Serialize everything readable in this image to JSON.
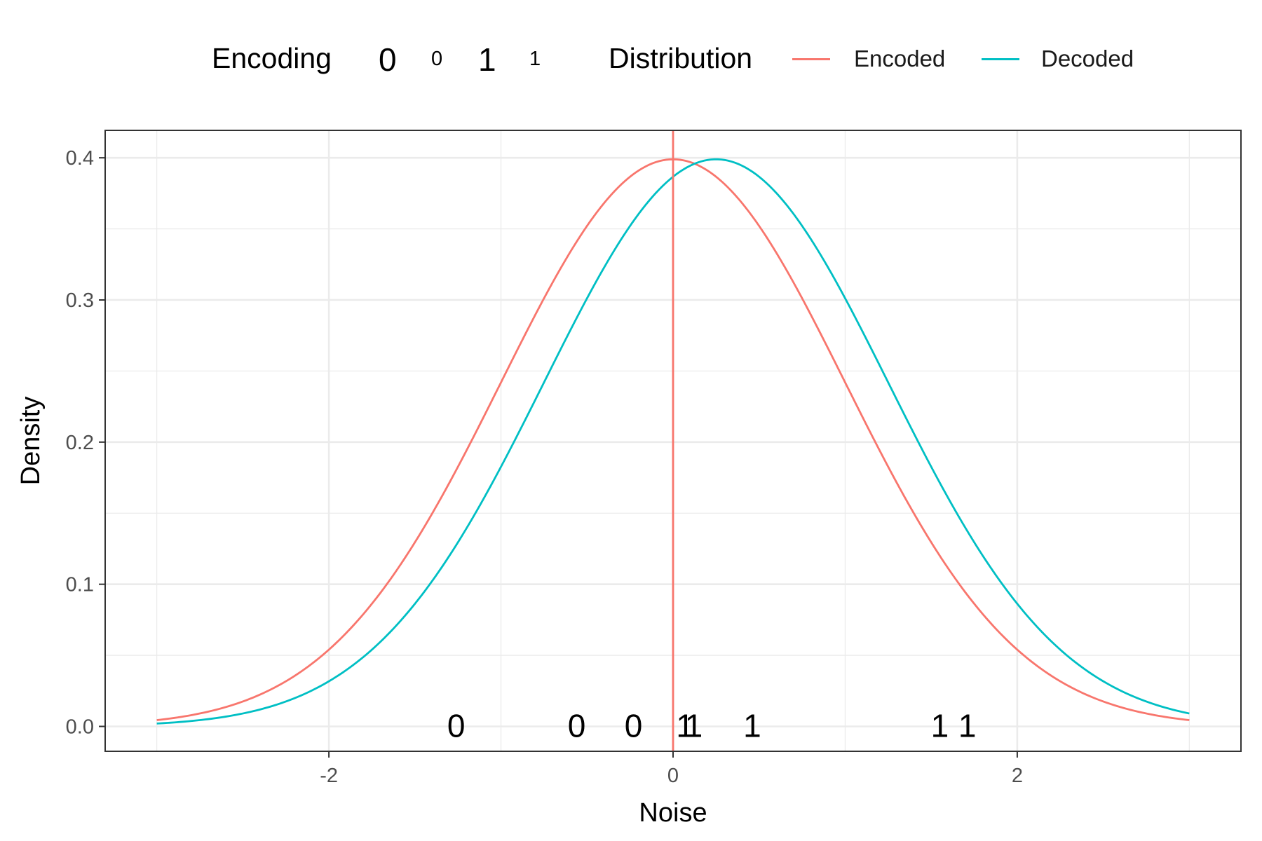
{
  "legend": {
    "encoding_title": "Encoding",
    "encoding_keys": [
      {
        "label": "0",
        "size": "big"
      },
      {
        "label": "0",
        "size": "small"
      },
      {
        "label": "1",
        "size": "big"
      },
      {
        "label": "1",
        "size": "small"
      }
    ],
    "distribution_title": "Distribution",
    "distribution_items": [
      {
        "label": "Encoded",
        "color": "#F8766D"
      },
      {
        "label": "Decoded",
        "color": "#00BFC4"
      }
    ]
  },
  "chart_data": {
    "type": "line",
    "title": "",
    "xlabel": "Noise",
    "ylabel": "Density",
    "xlim": [
      -3.0,
      3.0
    ],
    "ylim": [
      0.0,
      0.4
    ],
    "x_ticks": [
      -2,
      0,
      2
    ],
    "x_tick_labels": [
      "-2",
      "0",
      "2"
    ],
    "y_ticks": [
      0.0,
      0.1,
      0.2,
      0.3,
      0.4
    ],
    "y_tick_labels": [
      "0.0",
      "0.1",
      "0.2",
      "0.3",
      "0.4"
    ],
    "grid": true,
    "legend_position": "top",
    "series": [
      {
        "name": "Encoded",
        "color": "#F8766D",
        "distribution": "normal",
        "mean": 0.0,
        "sd": 1.0
      },
      {
        "name": "Decoded",
        "color": "#00BFC4",
        "distribution": "normal",
        "mean": 0.25,
        "sd": 1.0
      }
    ],
    "vline": {
      "x": 0.0,
      "color": "#F8766D"
    },
    "rug_labels": [
      {
        "x": -1.26,
        "label": "0"
      },
      {
        "x": -0.56,
        "label": "0"
      },
      {
        "x": -0.23,
        "label": "0"
      },
      {
        "x": 0.07,
        "label": "1"
      },
      {
        "x": 0.12,
        "label": "1"
      },
      {
        "x": 0.46,
        "label": "1"
      },
      {
        "x": 1.55,
        "label": "1"
      },
      {
        "x": 1.71,
        "label": "1"
      }
    ]
  }
}
